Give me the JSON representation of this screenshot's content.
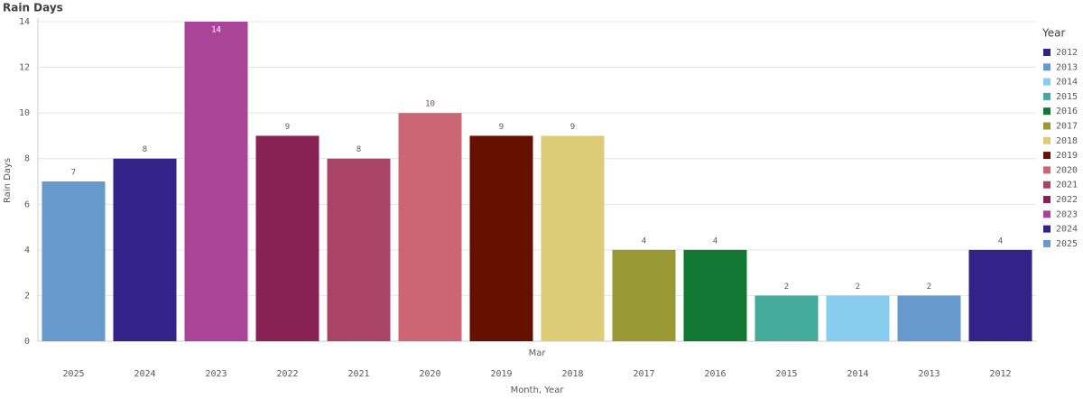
{
  "chart_data": {
    "type": "bar",
    "title": "Rain Days",
    "y_label": "Rain Days",
    "x_label": "Month, Year",
    "x_group_label": "Mar",
    "categories": [
      "2025",
      "2024",
      "2023",
      "2022",
      "2021",
      "2020",
      "2019",
      "2018",
      "2017",
      "2016",
      "2015",
      "2014",
      "2013",
      "2012"
    ],
    "values": [
      7,
      8,
      14,
      9,
      8,
      10,
      9,
      9,
      4,
      4,
      2,
      2,
      2,
      4
    ],
    "ylim": [
      0,
      14
    ],
    "yticks": [
      0,
      2,
      4,
      6,
      8,
      10,
      12,
      14
    ],
    "grid": true,
    "legend": {
      "title": "Year",
      "position": "right",
      "items": [
        {
          "name": "2012",
          "color": "#332288"
        },
        {
          "name": "2013",
          "color": "#6699cc"
        },
        {
          "name": "2014",
          "color": "#88ccee"
        },
        {
          "name": "2015",
          "color": "#44aa99"
        },
        {
          "name": "2016",
          "color": "#117733"
        },
        {
          "name": "2017",
          "color": "#999933"
        },
        {
          "name": "2018",
          "color": "#ddcc77"
        },
        {
          "name": "2019",
          "color": "#661100"
        },
        {
          "name": "2020",
          "color": "#cc6677"
        },
        {
          "name": "2021",
          "color": "#aa4466"
        },
        {
          "name": "2022",
          "color": "#882255"
        },
        {
          "name": "2023",
          "color": "#aa4499"
        },
        {
          "name": "2024",
          "color": "#332288"
        },
        {
          "name": "2025",
          "color": "#6699cc"
        }
      ]
    }
  }
}
